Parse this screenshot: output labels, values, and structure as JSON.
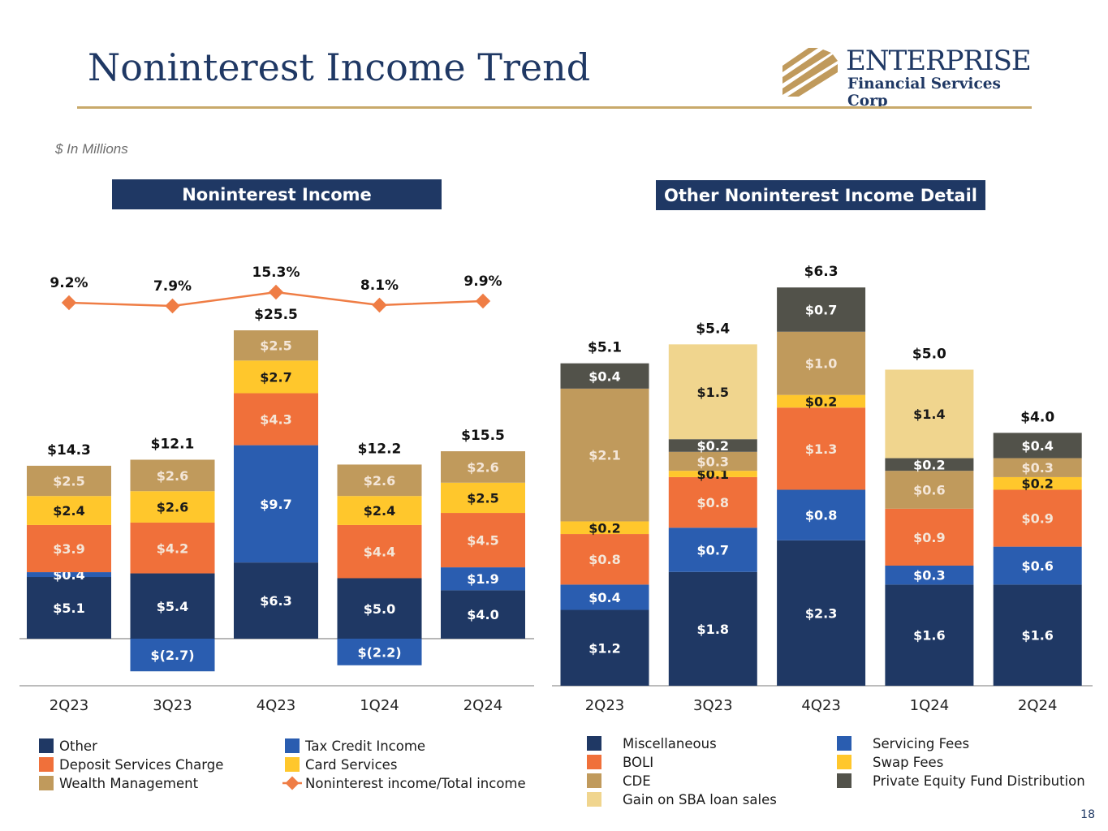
{
  "title": "Noninterest Income Trend",
  "logo": {
    "name": "ENTERPRISE",
    "subtitle": "Financial Services Corp"
  },
  "units_note": "$ In Millions",
  "page_number": "18",
  "colors": {
    "navy": "#1f3864",
    "blue": "#2a5db0",
    "orange": "#f0703a",
    "gold": "#ffc72c",
    "tan": "#c09a5c",
    "light_tan": "#f0d58e",
    "dark_gray": "#52524a",
    "line": "#ef7d45"
  },
  "chart_data": [
    {
      "type": "bar",
      "stacked": true,
      "title": "Noninterest Income",
      "categories": [
        "2Q23",
        "3Q23",
        "4Q23",
        "1Q24",
        "2Q24"
      ],
      "series": [
        {
          "name": "Other",
          "color": "#1f3864",
          "values": [
            5.1,
            5.4,
            6.3,
            5.0,
            4.0
          ],
          "labels": [
            "$5.1",
            "$5.4",
            "$6.3",
            "$5.0",
            "$4.0"
          ]
        },
        {
          "name": "Tax Credit Income",
          "color": "#2a5db0",
          "values": [
            0.4,
            -2.7,
            9.7,
            -2.2,
            1.9
          ],
          "labels": [
            "$0.4",
            "$(2.7)",
            "$9.7",
            "$(2.2)",
            "$1.9"
          ]
        },
        {
          "name": "Deposit Services Charge",
          "color": "#f0703a",
          "values": [
            3.9,
            4.2,
            4.3,
            4.4,
            4.5
          ],
          "labels": [
            "$3.9",
            "$4.2",
            "$4.3",
            "$4.4",
            "$4.5"
          ]
        },
        {
          "name": "Card Services",
          "color": "#ffc72c",
          "values": [
            2.4,
            2.6,
            2.7,
            2.4,
            2.5
          ],
          "labels": [
            "$2.4",
            "$2.6",
            "$2.7",
            "$2.4",
            "$2.5"
          ]
        },
        {
          "name": "Wealth Management",
          "color": "#c09a5c",
          "values": [
            2.5,
            2.6,
            2.5,
            2.6,
            2.6
          ],
          "labels": [
            "$2.5",
            "$2.6",
            "$2.5",
            "$2.6",
            "$2.6"
          ]
        }
      ],
      "totals": [
        "$14.3",
        "$12.1",
        "$25.5",
        "$12.2",
        "$15.5"
      ],
      "line": {
        "name": "Noninterest income/Total income",
        "color": "#ef7d45",
        "values": [
          9.2,
          7.9,
          15.3,
          8.1,
          9.9
        ],
        "labels": [
          "9.2%",
          "7.9%",
          "15.3%",
          "8.1%",
          "9.9%"
        ]
      },
      "legend": [
        {
          "name": "Other",
          "color": "#1f3864",
          "kind": "box"
        },
        {
          "name": "Tax Credit Income",
          "color": "#2a5db0",
          "kind": "box"
        },
        {
          "name": "Deposit Services Charge",
          "color": "#f0703a",
          "kind": "box"
        },
        {
          "name": "Card Services",
          "color": "#ffc72c",
          "kind": "box"
        },
        {
          "name": "Wealth Management",
          "color": "#c09a5c",
          "kind": "box"
        },
        {
          "name": "Noninterest income/Total income",
          "color": "#ef7d45",
          "kind": "line"
        }
      ]
    },
    {
      "type": "bar",
      "stacked": true,
      "title": "Other Noninterest Income Detail",
      "categories": [
        "2Q23",
        "3Q23",
        "4Q23",
        "1Q24",
        "2Q24"
      ],
      "series": [
        {
          "name": "Miscellaneous",
          "color": "#1f3864",
          "values": [
            1.2,
            1.8,
            2.3,
            1.6,
            1.6
          ],
          "labels": [
            "$1.2",
            "$1.8",
            "$2.3",
            "$1.6",
            "$1.6"
          ]
        },
        {
          "name": "Servicing Fees",
          "color": "#2a5db0",
          "values": [
            0.4,
            0.7,
            0.8,
            0.3,
            0.6
          ],
          "labels": [
            "$0.4",
            "$0.7",
            "$0.8",
            "$0.3",
            "$0.6"
          ]
        },
        {
          "name": "BOLI",
          "color": "#f0703a",
          "values": [
            0.8,
            0.8,
            1.3,
            0.9,
            0.9
          ],
          "labels": [
            "$0.8",
            "$0.8",
            "$1.3",
            "$0.9",
            "$0.9"
          ]
        },
        {
          "name": "Swap Fees",
          "color": "#ffc72c",
          "values": [
            0.2,
            0.1,
            0.2,
            0.0,
            0.2
          ],
          "labels": [
            "$0.2",
            "$0.1",
            "$0.2",
            "",
            "$0.2"
          ]
        },
        {
          "name": "CDE",
          "color": "#c09a5c",
          "values": [
            2.1,
            0.3,
            1.0,
            0.6,
            0.3
          ],
          "labels": [
            "$2.1",
            "$0.3",
            "$1.0",
            "$0.6",
            "$0.3"
          ]
        },
        {
          "name": "Private Equity Fund Distribution",
          "color": "#52524a",
          "values": [
            0.4,
            0.2,
            0.7,
            0.2,
            0.4
          ],
          "labels": [
            "$0.4",
            "$0.2",
            "$0.7",
            "$0.2",
            "$0.4"
          ]
        },
        {
          "name": "Gain on SBA loan sales",
          "color": "#f0d58e",
          "values": [
            0.0,
            1.5,
            0.0,
            1.4,
            0.0
          ],
          "labels": [
            "",
            "$1.5",
            "",
            "$1.4",
            ""
          ]
        }
      ],
      "totals": [
        "$5.1",
        "$5.4",
        "$6.3",
        "$5.0",
        "$4.0"
      ],
      "legend": [
        {
          "name": "Miscellaneous",
          "color": "#1f3864",
          "kind": "box"
        },
        {
          "name": "Servicing Fees",
          "color": "#2a5db0",
          "kind": "box"
        },
        {
          "name": "BOLI",
          "color": "#f0703a",
          "kind": "box"
        },
        {
          "name": "Swap Fees",
          "color": "#ffc72c",
          "kind": "box"
        },
        {
          "name": "CDE",
          "color": "#c09a5c",
          "kind": "box"
        },
        {
          "name": "Private Equity Fund Distribution",
          "color": "#52524a",
          "kind": "box"
        },
        {
          "name": "Gain on SBA loan sales",
          "color": "#f0d58e",
          "kind": "box"
        }
      ]
    }
  ]
}
